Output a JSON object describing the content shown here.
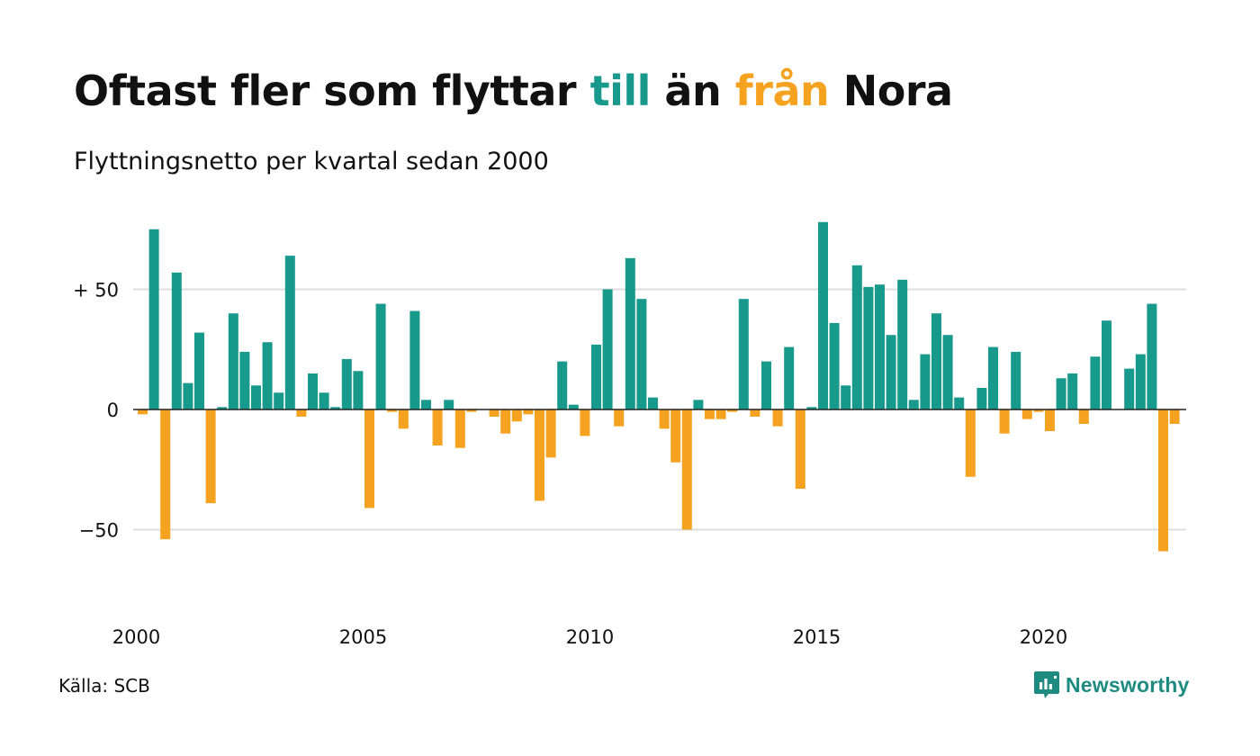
{
  "title": {
    "part1": "Oftast fler som flyttar ",
    "till": "till",
    "part2": " än ",
    "fran": "från",
    "part3": " Nora"
  },
  "subtitle": "Flyttningsnetto per kvartal sedan 2000",
  "source": "Källa: SCB",
  "brand": {
    "name": "Newsworthy",
    "icon": "newsworthy-logo-icon",
    "color": "#1e8b80"
  },
  "colors": {
    "positive": "#17998b",
    "negative": "#f4a21f",
    "grid": "#dddddd",
    "zero": "#222222"
  },
  "chart_data": {
    "type": "bar",
    "title": "Oftast fler som flyttar till än från Nora",
    "subtitle": "Flyttningsnetto per kvartal sedan 2000",
    "xlabel": "",
    "ylabel": "",
    "ylim": [
      -80,
      80
    ],
    "yticks": [
      {
        "value": 50,
        "label": "+ 50"
      },
      {
        "value": 0,
        "label": "0"
      },
      {
        "value": -50,
        "label": "−50"
      }
    ],
    "xticks": [
      {
        "year": 2000,
        "label": "2000"
      },
      {
        "year": 2005,
        "label": "2005"
      },
      {
        "year": 2010,
        "label": "2010"
      },
      {
        "year": 2015,
        "label": "2015"
      },
      {
        "year": 2020,
        "label": "2020"
      }
    ],
    "grid": true,
    "start": "2000 Q1",
    "values": [
      -2,
      75,
      -54,
      57,
      11,
      32,
      -39,
      1,
      40,
      24,
      10,
      28,
      7,
      64,
      -3,
      15,
      7,
      1,
      21,
      16,
      -41,
      44,
      -1,
      -8,
      41,
      4,
      -15,
      4,
      -16,
      -1,
      0,
      -3,
      -10,
      -5,
      -2,
      -38,
      -20,
      20,
      2,
      -11,
      27,
      50,
      -7,
      63,
      46,
      5,
      -8,
      -22,
      -50,
      4,
      -4,
      -4,
      -1,
      46,
      -3,
      20,
      -7,
      26,
      -33,
      1,
      78,
      36,
      10,
      60,
      51,
      52,
      31,
      54,
      4,
      23,
      40,
      31,
      5,
      -28,
      9,
      26,
      -10,
      24,
      -4,
      -1,
      -9,
      13,
      15,
      -6,
      22,
      37,
      0,
      17,
      23,
      44,
      -59,
      -6
    ]
  }
}
